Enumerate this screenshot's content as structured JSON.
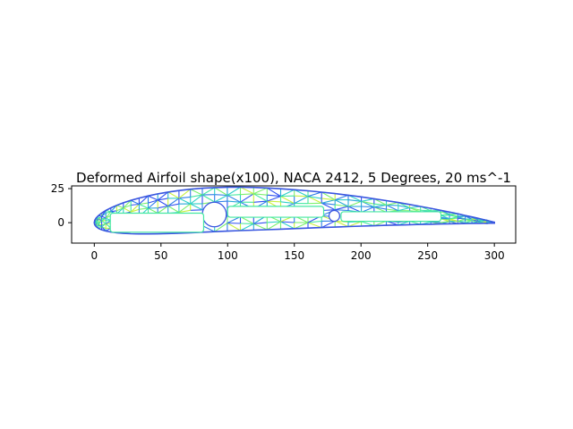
{
  "chart_data": {
    "type": "mesh",
    "title": "Deformed Airfoil shape(x100), NACA 2412, 5 Degrees, 20 ms^-1",
    "xlabel": "",
    "ylabel": "",
    "xlim": [
      -17,
      316
    ],
    "ylim": [
      -15,
      27
    ],
    "xticks": [
      0,
      50,
      100,
      150,
      200,
      250,
      300
    ],
    "yticks": [
      0,
      25
    ],
    "grid": false,
    "airfoil": {
      "chord": 300,
      "max_camber": 0.02,
      "camber_position": 0.4,
      "thickness": 0.12,
      "deformation_scale": 100
    },
    "holes": [
      {
        "type": "circle",
        "cx": 90,
        "cy": 6,
        "r": 9
      },
      {
        "type": "circle",
        "cx": 180,
        "cy": 5,
        "r": 4
      },
      {
        "type": "slot",
        "x0": 12,
        "x1": 82,
        "y0": -7,
        "y1": 7
      },
      {
        "type": "slot",
        "x0": 100,
        "x1": 172,
        "y0": 4,
        "y1": 12
      },
      {
        "type": "slot",
        "x0": 185,
        "x1": 260,
        "y0": 1,
        "y1": 8
      }
    ],
    "colormap": [
      "#3050f0",
      "#2f7fe8",
      "#28a8d8",
      "#2fd0c8",
      "#43e8a0",
      "#7cf070",
      "#c8f040"
    ]
  }
}
